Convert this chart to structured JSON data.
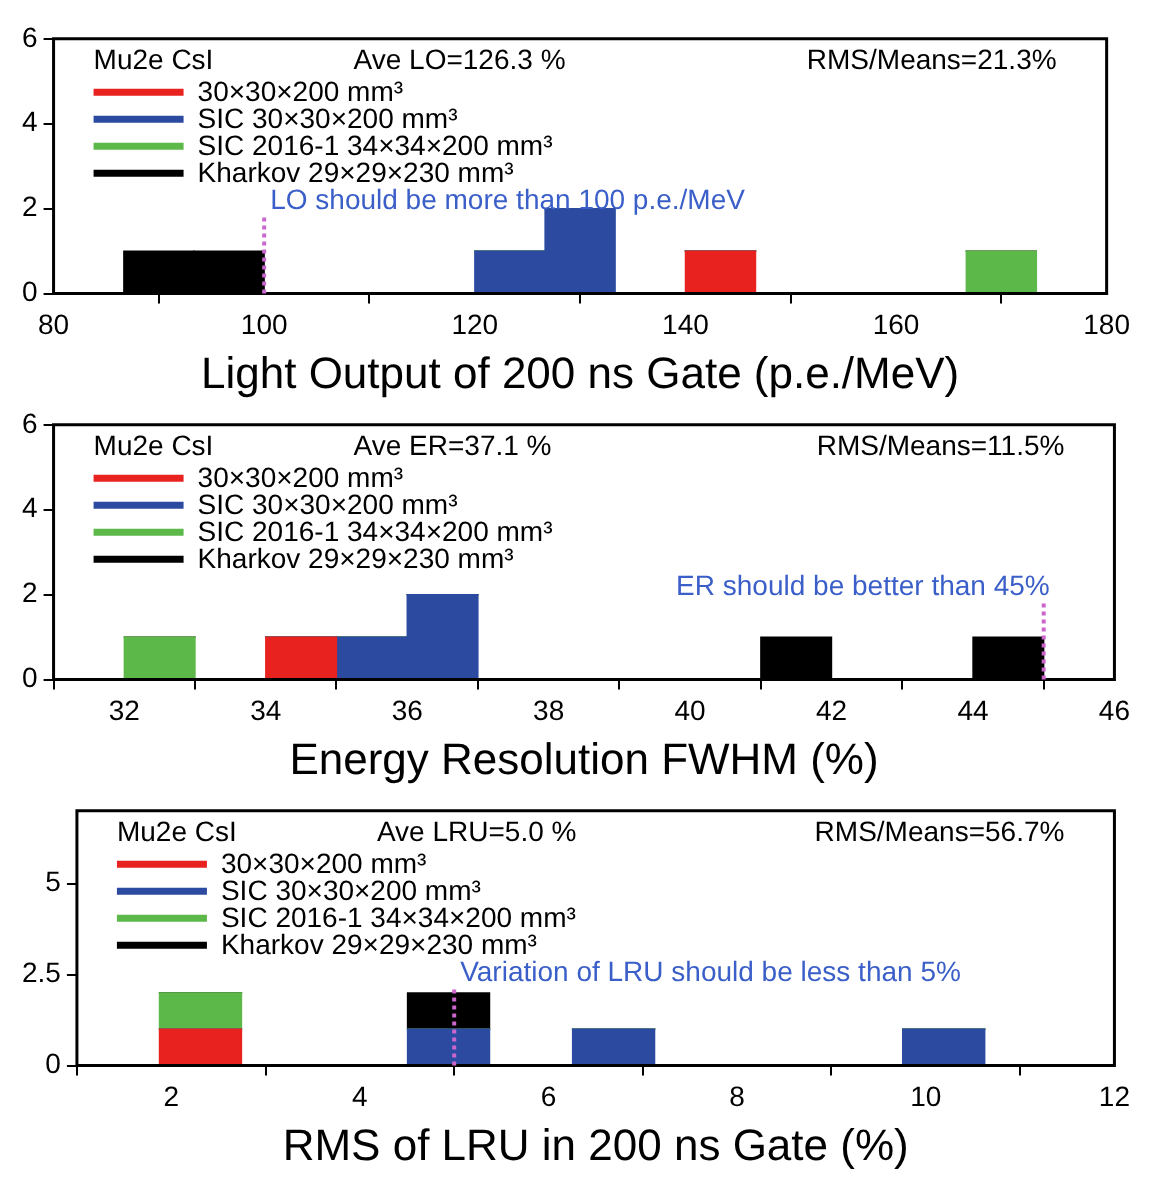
{
  "chart_data": [
    {
      "type": "bar",
      "xlabel": "Light Output of 200 ns Gate (p.e./MeV)",
      "annotations": [
        "Mu2e CsI",
        "Ave LO=126.3 %",
        "RMS/Means=21.3%"
      ],
      "x": [
        83.33,
        90,
        96.67,
        103.33,
        110,
        116.67,
        123.33,
        130,
        136.67,
        143.33,
        150,
        156.67,
        163.33,
        170,
        176.67
      ],
      "stacked": true,
      "series": [
        {
          "name": "30×30×200 mm³",
          "color": "#e8231f",
          "values": [
            0,
            0,
            0,
            0,
            0,
            0,
            0,
            0,
            0,
            1,
            0,
            0,
            0,
            0,
            0
          ]
        },
        {
          "name": "SIC 30×30×200 mm³",
          "color": "#2b4aa0",
          "values": [
            0,
            0,
            0,
            0,
            0,
            0,
            1,
            2,
            0,
            0,
            0,
            0,
            0,
            0,
            0
          ]
        },
        {
          "name": "SIC 2016-1 34×34×200 mm³",
          "color": "#5cb848",
          "values": [
            0,
            0,
            0,
            0,
            0,
            0,
            0,
            0,
            0,
            0,
            0,
            0,
            0,
            1,
            0
          ]
        },
        {
          "name": "Kharkov 29×29×230 mm³",
          "color": "#000000",
          "values": [
            0,
            1,
            1,
            0,
            0,
            0,
            0,
            0,
            0,
            0,
            0,
            0,
            0,
            0,
            0
          ]
        }
      ],
      "xlim": [
        80,
        180
      ],
      "xticks": [
        80,
        100,
        120,
        140,
        160,
        180
      ],
      "ylim": [
        0,
        6
      ],
      "yticks": [
        0,
        2,
        4,
        6
      ],
      "ref_lines": [
        {
          "axis": "x",
          "value": 100,
          "label": "LO should be more than 100 p.e./MeV",
          "color": "#cc66cc",
          "line_style": "dotted"
        }
      ],
      "legend": "top left"
    },
    {
      "type": "bar",
      "xlabel": "Energy Resolution FWHM (%)",
      "annotations": [
        "Mu2e CsI",
        "Ave ER=37.1 %",
        "RMS/Means=11.5%"
      ],
      "x": [
        31.5,
        32.5,
        33.5,
        34.5,
        35.5,
        36.5,
        37.5,
        38.5,
        39.5,
        40.5,
        41.5,
        42.5,
        43.5,
        44.5,
        45.5
      ],
      "stacked": true,
      "series": [
        {
          "name": "30×30×200 mm³",
          "color": "#e8231f",
          "values": [
            0,
            0,
            0,
            1,
            0,
            0,
            0,
            0,
            0,
            0,
            0,
            0,
            0,
            0,
            0
          ]
        },
        {
          "name": "SIC 30×30×200 mm³",
          "color": "#2b4aa0",
          "values": [
            0,
            0,
            0,
            0,
            1,
            2,
            0,
            0,
            0,
            0,
            0,
            0,
            0,
            0,
            0
          ]
        },
        {
          "name": "SIC 2016-1 34×34×200 mm³",
          "color": "#5cb848",
          "values": [
            0,
            1,
            0,
            0,
            0,
            0,
            0,
            0,
            0,
            0,
            0,
            0,
            0,
            0,
            0
          ]
        },
        {
          "name": "Kharkov 29×29×230 mm³",
          "color": "#000000",
          "values": [
            0,
            0,
            0,
            0,
            0,
            0,
            0,
            0,
            0,
            0,
            1,
            0,
            0,
            1,
            0
          ]
        }
      ],
      "xlim": [
        31,
        46
      ],
      "xticks": [
        32,
        34,
        36,
        38,
        40,
        42,
        44,
        46
      ],
      "ylim": [
        0,
        6
      ],
      "yticks": [
        0,
        2,
        4,
        6
      ],
      "ref_lines": [
        {
          "axis": "x",
          "value": 45,
          "label": "ER should be better than 45%",
          "color": "#cc66cc",
          "line_style": "dotted"
        }
      ],
      "legend": "top left"
    },
    {
      "type": "bar",
      "xlabel": "RMS of LRU in 200 ns Gate (%)",
      "annotations": [
        "Mu2e CsI",
        "Ave LRU=5.0 %",
        "RMS/Means=56.7%"
      ],
      "x": [
        1.44,
        2.31,
        3.19,
        4.06,
        4.94,
        5.81,
        6.69,
        7.56,
        8.44,
        9.31,
        10.19,
        11.06
      ],
      "stacked": true,
      "series": [
        {
          "name": "30×30×200 mm³",
          "color": "#e8231f",
          "values": [
            0,
            1,
            0,
            0,
            0,
            0,
            0,
            0,
            0,
            0,
            0,
            0
          ]
        },
        {
          "name": "SIC 30×30×200 mm³",
          "color": "#2b4aa0",
          "values": [
            0,
            0,
            0,
            0,
            1,
            0,
            1,
            0,
            0,
            0,
            1,
            0
          ]
        },
        {
          "name": "SIC 2016-1 34×34×200 mm³",
          "color": "#5cb848",
          "values": [
            0,
            1,
            0,
            0,
            0,
            0,
            0,
            0,
            0,
            0,
            0,
            0
          ]
        },
        {
          "name": "Kharkov 29×29×230 mm³",
          "color": "#000000",
          "values": [
            0,
            0,
            0,
            0,
            1,
            0,
            0,
            0,
            0,
            0,
            0,
            0
          ]
        }
      ],
      "xlim": [
        1,
        12
      ],
      "xticks": [
        2,
        4,
        6,
        8,
        10,
        12
      ],
      "ylim": [
        0,
        7
      ],
      "yticks": [
        0,
        2.5,
        5
      ],
      "ref_lines": [
        {
          "axis": "x",
          "value": 5,
          "label": "Variation of LRU should be less than 5%",
          "color": "#cc66cc",
          "line_style": "dotted"
        }
      ],
      "legend": "top left"
    }
  ]
}
